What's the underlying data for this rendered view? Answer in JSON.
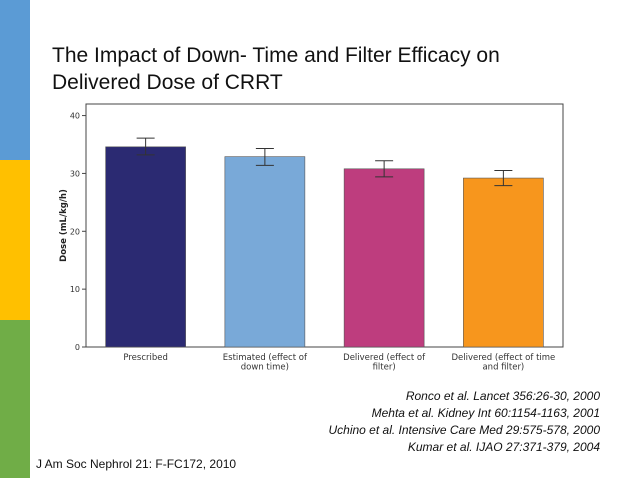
{
  "slide": {
    "title_lines": [
      "The Impact of Down- Time and Filter Efficacy on",
      "Delivered Dose of CRRT"
    ],
    "stripe_colors": [
      "#5B9BD5",
      "#FFC000",
      "#70AD47"
    ],
    "references": [
      "Ronco et al. Lancet 356:26-30, 2000",
      "Mehta et al. Kidney Int 60:1154-1163, 2001",
      "Uchino et al. Intensive Care Med 29:575-578, 2000",
      "Kumar et al. IJAO 27:371-379, 2004"
    ],
    "source": "J Am Soc Nephrol 21: F-FC172, 2010"
  },
  "chart_data": {
    "type": "bar",
    "ylabel": "Dose (mL/kg/h)",
    "ylim": [
      0,
      42
    ],
    "yticks": [
      0,
      10,
      20,
      30,
      40
    ],
    "grid": false,
    "categories": [
      [
        "Prescribed"
      ],
      [
        "Estimated (effect of",
        "down time)"
      ],
      [
        "Delivered (effect of",
        "filter)"
      ],
      [
        "Delivered (effect of time",
        "and filter)"
      ]
    ],
    "values": [
      34.6,
      32.9,
      30.8,
      29.2
    ],
    "error": [
      [
        33.2,
        36.1
      ],
      [
        31.4,
        34.3
      ],
      [
        29.4,
        32.2
      ],
      [
        27.9,
        30.5
      ]
    ],
    "colors": [
      "#2B2A72",
      "#79A9D8",
      "#BE3D7E",
      "#F7961D"
    ]
  }
}
